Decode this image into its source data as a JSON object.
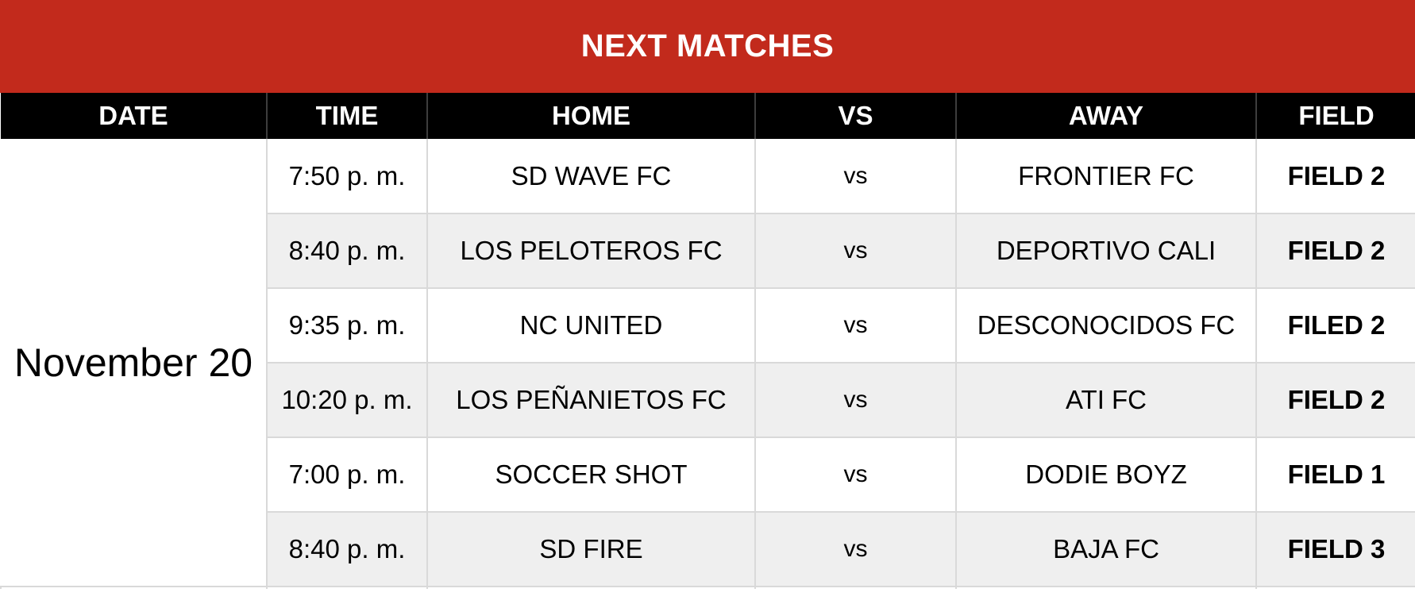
{
  "banner": {
    "title": "NEXT MATCHES",
    "background_color": "#c22a1c",
    "text_color": "#ffffff"
  },
  "table": {
    "headers": [
      "DATE",
      "TIME",
      "HOME",
      "VS",
      "AWAY",
      "FIELD"
    ],
    "date": "November 20",
    "rows": [
      {
        "time": "7:50 p. m.",
        "home": "SD WAVE FC",
        "vs": "vs",
        "away": "FRONTIER FC",
        "field": "FIELD 2"
      },
      {
        "time": "8:40 p. m.",
        "home": "LOS PELOTEROS FC",
        "vs": "vs",
        "away": "DEPORTIVO CALI",
        "field": "FIELD 2"
      },
      {
        "time": "9:35 p. m.",
        "home": "NC UNITED",
        "vs": "vs",
        "away": "DESCONOCIDOS FC",
        "field": "FILED 2"
      },
      {
        "time": "10:20 p. m.",
        "home": "LOS PEÑANIETOS FC",
        "vs": "vs",
        "away": "ATI FC",
        "field": "FIELD 2"
      },
      {
        "time": "7:00 p. m.",
        "home": "SOCCER SHOT",
        "vs": "vs",
        "away": "DODIE BOYZ",
        "field": "FIELD 1"
      },
      {
        "time": "8:40 p. m.",
        "home": "SD FIRE",
        "vs": "vs",
        "away": "BAJA FC",
        "field": "FIELD 3"
      }
    ],
    "colors": {
      "header_bg": "#000000",
      "header_text": "#ffffff",
      "row_bg": "#ffffff",
      "row_alt_bg": "#efefef",
      "divider": "#d9d9d9",
      "body_text": "#000000"
    }
  }
}
